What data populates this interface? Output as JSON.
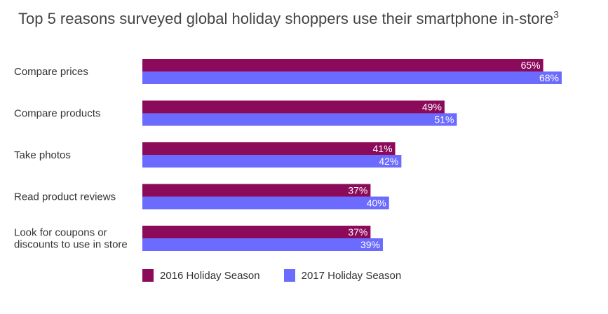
{
  "chart_data": {
    "type": "bar",
    "orientation": "horizontal",
    "title": "Top 5 reasons surveyed global holiday shoppers use their smartphone in-store",
    "title_superscript": "3",
    "categories": [
      [
        "Compare prices"
      ],
      [
        "Compare products"
      ],
      [
        "Take photos"
      ],
      [
        "Read product reviews"
      ],
      [
        "Look for coupons or",
        "discounts to use in store"
      ]
    ],
    "series": [
      {
        "name": "2016 Holiday Season",
        "values": [
          65,
          49,
          41,
          37,
          37
        ],
        "labels": [
          "65%",
          "49%",
          "41%",
          "37%",
          "37%"
        ],
        "color": "#8c0a5a"
      },
      {
        "name": "2017 Holiday Season",
        "values": [
          68,
          51,
          42,
          40,
          39
        ],
        "labels": [
          "68%",
          "51%",
          "42%",
          "40%",
          "39%"
        ],
        "color": "#6b6bff"
      }
    ],
    "xlim": [
      0,
      68
    ],
    "grid": false,
    "legend_position": "bottom-left"
  }
}
